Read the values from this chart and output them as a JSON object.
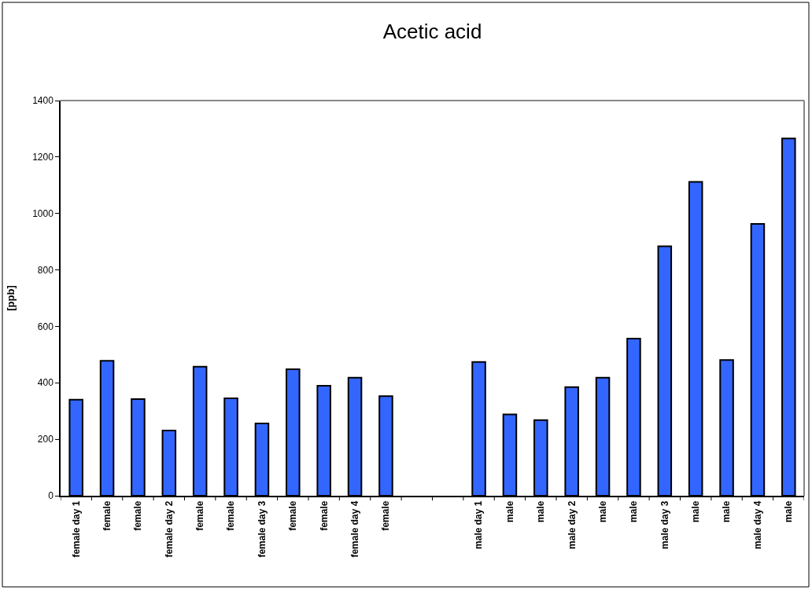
{
  "chart_data": {
    "type": "bar",
    "title": "Acetic acid",
    "ylabel": "[ppb]",
    "categories": [
      "female day 1",
      "female",
      "female",
      "female day 2",
      "female",
      "female",
      "female day 3",
      "female",
      "female",
      "female day 4",
      "female",
      null,
      null,
      "male day 1",
      "male",
      "male",
      "male day 2",
      "male",
      "male",
      "male day 3",
      "male",
      "male",
      "male day 4",
      "male"
    ],
    "values": [
      340,
      478,
      342,
      231,
      457,
      345,
      256,
      448,
      390,
      418,
      353,
      null,
      null,
      474,
      288,
      268,
      385,
      418,
      557,
      884,
      1112,
      481,
      963,
      1266
    ],
    "color": "#3366ff",
    "ylim": [
      0,
      1400
    ],
    "yticks": [
      0,
      200,
      400,
      600,
      800,
      1000,
      1200,
      1400
    ],
    "legend": false
  }
}
